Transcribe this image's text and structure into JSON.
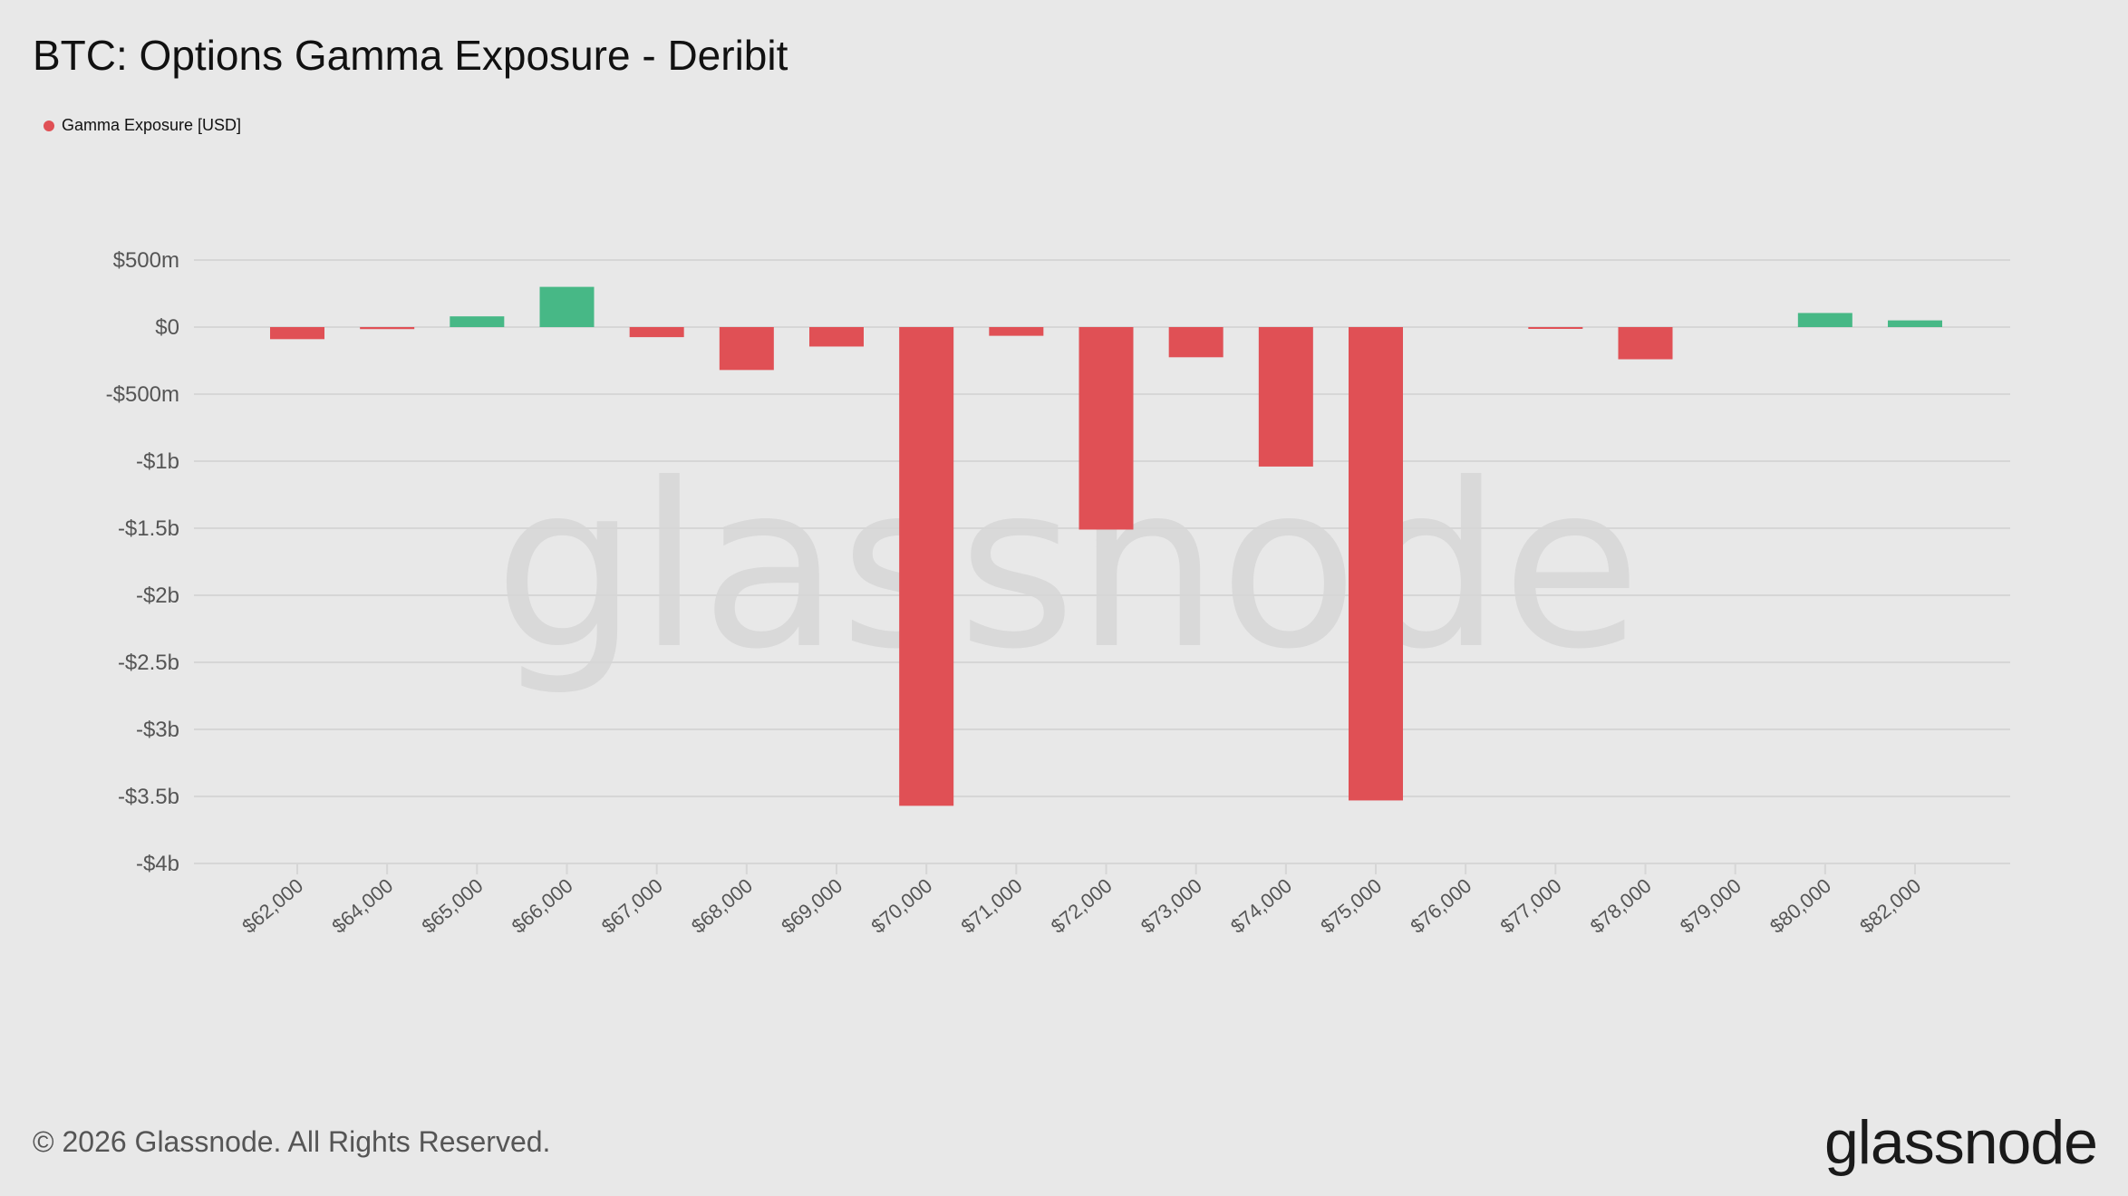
{
  "header": {
    "title": "BTC: Options Gamma Exposure - Deribit"
  },
  "legend": {
    "label": "Gamma Exposure [USD]"
  },
  "footer": {
    "copyright": "© 2026 Glassnode. All Rights Reserved.",
    "brand": "glassnode"
  },
  "watermark": "glassnode",
  "colors": {
    "negative": "#e05055",
    "positive": "#47b886",
    "legend_dot": "#e05055",
    "grid": "#d6d6d6"
  },
  "chart_data": {
    "type": "bar",
    "title": "BTC: Options Gamma Exposure - Deribit",
    "xlabel": "",
    "ylabel": "",
    "ylim": [
      -4000000000,
      500000000
    ],
    "grid": true,
    "legend_position": "top-left",
    "y_ticks": [
      {
        "value": 500000000,
        "label": "$500m"
      },
      {
        "value": 0,
        "label": "$0"
      },
      {
        "value": -500000000,
        "label": "-$500m"
      },
      {
        "value": -1000000000,
        "label": "-$1b"
      },
      {
        "value": -1500000000,
        "label": "-$1.5b"
      },
      {
        "value": -2000000000,
        "label": "-$2b"
      },
      {
        "value": -2500000000,
        "label": "-$2.5b"
      },
      {
        "value": -3000000000,
        "label": "-$3b"
      },
      {
        "value": -3500000000,
        "label": "-$3.5b"
      },
      {
        "value": -4000000000,
        "label": "-$4b"
      }
    ],
    "categories": [
      "$62,000",
      "$64,000",
      "$65,000",
      "$66,000",
      "$67,000",
      "$68,000",
      "$69,000",
      "$70,000",
      "$71,000",
      "$72,000",
      "$73,000",
      "$74,000",
      "$75,000",
      "$76,000",
      "$77,000",
      "$78,000",
      "$79,000",
      "$80,000",
      "$82,000"
    ],
    "series": [
      {
        "name": "Gamma Exposure [USD]",
        "values": [
          -90000000,
          -15000000,
          80000000,
          300000000,
          -75000000,
          -320000000,
          -145000000,
          -3570000000,
          -65000000,
          -1510000000,
          -225000000,
          -1040000000,
          -3530000000,
          0,
          -10000000,
          -240000000,
          0,
          105000000,
          50000000
        ]
      }
    ]
  }
}
